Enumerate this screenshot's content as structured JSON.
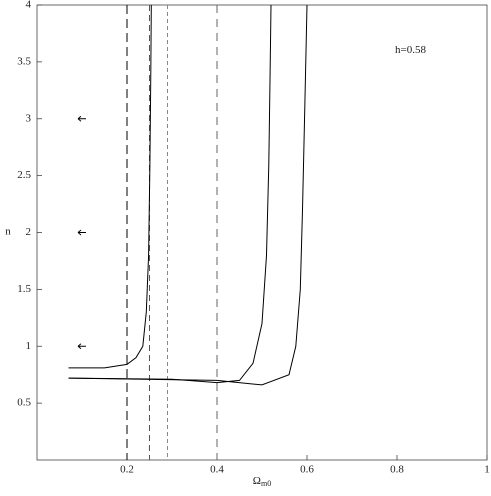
{
  "chart_data": {
    "type": "line",
    "x_label": "Ω",
    "x_label_sub": "m0",
    "y_label": "n",
    "annotation": "h=0.58",
    "annotation_pos": [
      0.83,
      3.6
    ],
    "xlim": [
      0,
      1
    ],
    "ylim": [
      0,
      4
    ],
    "xticks": [
      0.2,
      0.4,
      0.6,
      0.8,
      1
    ],
    "yticks": [
      0.5,
      1,
      1.5,
      2,
      2.5,
      3,
      3.5,
      4
    ],
    "series": [
      {
        "color": "#000000",
        "x": [
          0.07,
          0.15,
          0.2,
          0.22,
          0.235,
          0.243,
          0.248,
          0.251,
          0.253,
          0.254
        ],
        "values": [
          0.81,
          0.81,
          0.84,
          0.9,
          1.0,
          1.3,
          1.8,
          2.6,
          3.4,
          4
        ]
      },
      {
        "color": "#000000",
        "x": [
          0.07,
          0.3,
          0.4,
          0.45,
          0.48,
          0.5,
          0.51,
          0.515,
          0.518,
          0.52
        ],
        "values": [
          0.72,
          0.71,
          0.68,
          0.7,
          0.85,
          1.2,
          1.8,
          2.6,
          3.4,
          4
        ]
      },
      {
        "color": "#000000",
        "x": [
          0.07,
          0.4,
          0.5,
          0.56,
          0.575,
          0.585,
          0.59,
          0.595,
          0.6
        ],
        "values": [
          0.72,
          0.7,
          0.66,
          0.75,
          1.0,
          1.5,
          2.2,
          3.1,
          4
        ]
      }
    ],
    "vlines": [
      {
        "x": 0.2,
        "color": "#000000",
        "dash": "9,5"
      },
      {
        "x": 0.25,
        "color": "#555555",
        "dash": "6,4"
      },
      {
        "x": 0.29,
        "color": "#888888",
        "dash": "4,3"
      },
      {
        "x": 0.4,
        "color": "#666666",
        "dash": "8,6"
      }
    ],
    "arrows": [
      {
        "x": 0.1,
        "y": 1
      },
      {
        "x": 0.1,
        "y": 2
      },
      {
        "x": 0.1,
        "y": 3
      }
    ]
  }
}
